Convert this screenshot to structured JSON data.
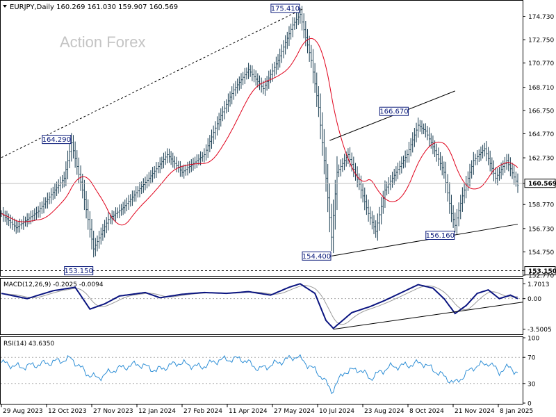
{
  "header": {
    "symbol_line": "EURJPY,Daily  160.269 161.030 159.907 160.569",
    "watermark": "Action Forex"
  },
  "colors": {
    "candles": "#1b3f53",
    "sma": "#e0001a",
    "macd": "#0a1480",
    "signal": "#9a9a9a",
    "rsi": "#2f8fd6",
    "trend": "#000000",
    "price_line": "#bdbdbd"
  },
  "chart_data": [
    {
      "type": "candlestick",
      "title": "EURJPY,Daily",
      "ohlc_last": {
        "open": 160.269,
        "high": 161.03,
        "low": 159.907,
        "close": 160.569
      },
      "ylim": [
        152.77,
        176.0
      ],
      "yticks": [
        "174.730",
        "172.750",
        "170.770",
        "168.710",
        "166.750",
        "164.770",
        "162.730",
        "160.569",
        "158.770",
        "156.730",
        "154.750",
        "153.150",
        "152.770"
      ],
      "current_price_label": "160.569",
      "support_label": "153.150",
      "x_dates": [
        "29 Aug 2023",
        "12 Oct 2023",
        "27 Nov 2023",
        "12 Jan 2024",
        "27 Feb 2024",
        "11 Apr 2024",
        "27 May 2024",
        "10 Jul 2024",
        "23 Aug 2024",
        "8 Oct 2024",
        "21 Nov 2024",
        "8 Jan 2025"
      ],
      "price_anchors": [
        {
          "bar": 0,
          "v": 158.0
        },
        {
          "bar": 8,
          "v": 156.8
        },
        {
          "bar": 20,
          "v": 158.2
        },
        {
          "bar": 34,
          "v": 161.0
        },
        {
          "bar": 38,
          "v": 164.0
        },
        {
          "bar": 44,
          "v": 160.0
        },
        {
          "bar": 50,
          "v": 155.0
        },
        {
          "bar": 58,
          "v": 157.5
        },
        {
          "bar": 66,
          "v": 158.5
        },
        {
          "bar": 80,
          "v": 161.0
        },
        {
          "bar": 90,
          "v": 163.0
        },
        {
          "bar": 98,
          "v": 161.5
        },
        {
          "bar": 110,
          "v": 163.0
        },
        {
          "bar": 118,
          "v": 166.0
        },
        {
          "bar": 126,
          "v": 168.5
        },
        {
          "bar": 134,
          "v": 170.2
        },
        {
          "bar": 142,
          "v": 168.6
        },
        {
          "bar": 150,
          "v": 171.0
        },
        {
          "bar": 158,
          "v": 174.0
        },
        {
          "bar": 162,
          "v": 174.9
        },
        {
          "bar": 168,
          "v": 171.0
        },
        {
          "bar": 172,
          "v": 167.0
        },
        {
          "bar": 176,
          "v": 161.0
        },
        {
          "bar": 179,
          "v": 156.0
        },
        {
          "bar": 182,
          "v": 161.5
        },
        {
          "bar": 188,
          "v": 163.0
        },
        {
          "bar": 194,
          "v": 160.5
        },
        {
          "bar": 199,
          "v": 158.0
        },
        {
          "bar": 203,
          "v": 156.5
        },
        {
          "bar": 208,
          "v": 160.0
        },
        {
          "bar": 214,
          "v": 161.5
        },
        {
          "bar": 220,
          "v": 163.0
        },
        {
          "bar": 226,
          "v": 165.5
        },
        {
          "bar": 230,
          "v": 165.0
        },
        {
          "bar": 236,
          "v": 163.0
        },
        {
          "bar": 240,
          "v": 161.5
        },
        {
          "bar": 244,
          "v": 158.0
        },
        {
          "bar": 246,
          "v": 157.0
        },
        {
          "bar": 250,
          "v": 159.5
        },
        {
          "bar": 256,
          "v": 162.5
        },
        {
          "bar": 262,
          "v": 163.5
        },
        {
          "bar": 268,
          "v": 161.0
        },
        {
          "bar": 274,
          "v": 162.5
        },
        {
          "bar": 280,
          "v": 160.4
        }
      ],
      "annotations": [
        {
          "text": "175.410",
          "bar": 162,
          "value": 175.41,
          "side": "left"
        },
        {
          "text": "164.290",
          "bar": 38,
          "value": 164.29,
          "side": "left"
        },
        {
          "text": "153.150",
          "bar": 50,
          "value": 153.15,
          "side": "left"
        },
        {
          "text": "154.400",
          "bar": 179,
          "value": 154.4,
          "side": "left"
        },
        {
          "text": "166.670",
          "bar": 221,
          "value": 166.67,
          "side": "left"
        },
        {
          "text": "156.160",
          "bar": 246,
          "value": 156.16,
          "side": "left"
        }
      ],
      "trendlines": [
        {
          "style": "dashed",
          "from": {
            "bar": 0,
            "value": 162.75
          },
          "to": {
            "bar": 164,
            "value": 175.41
          }
        },
        {
          "style": "solid",
          "from": {
            "bar": 178,
            "value": 164.2
          },
          "to": {
            "bar": 246,
            "value": 168.4
          }
        },
        {
          "style": "solid",
          "from": {
            "bar": 179,
            "value": 154.4
          },
          "to": {
            "bar": 280,
            "value": 157.1
          }
        }
      ],
      "support_value": 153.15
    },
    {
      "type": "line",
      "title": "MACD(12,26,9) -0.2025 -0.0094",
      "yticks": [
        "1.7013",
        "0.00",
        "-3.5005"
      ],
      "ylim": [
        -4.0,
        2.2
      ],
      "series_anchors": [
        {
          "bar": 0,
          "v": 0.6
        },
        {
          "bar": 14,
          "v": 0.0
        },
        {
          "bar": 28,
          "v": 0.9
        },
        {
          "bar": 40,
          "v": 1.3
        },
        {
          "bar": 48,
          "v": -1.2
        },
        {
          "bar": 56,
          "v": -0.6
        },
        {
          "bar": 64,
          "v": 0.3
        },
        {
          "bar": 78,
          "v": 0.7
        },
        {
          "bar": 86,
          "v": 0.1
        },
        {
          "bar": 98,
          "v": 0.5
        },
        {
          "bar": 110,
          "v": 0.7
        },
        {
          "bar": 122,
          "v": 0.6
        },
        {
          "bar": 134,
          "v": 0.8
        },
        {
          "bar": 146,
          "v": 0.4
        },
        {
          "bar": 156,
          "v": 1.3
        },
        {
          "bar": 162,
          "v": 1.7
        },
        {
          "bar": 170,
          "v": 0.6
        },
        {
          "bar": 176,
          "v": -2.5
        },
        {
          "bar": 180,
          "v": -3.4
        },
        {
          "bar": 190,
          "v": -1.6
        },
        {
          "bar": 200,
          "v": -0.9
        },
        {
          "bar": 208,
          "v": -0.2
        },
        {
          "bar": 216,
          "v": 0.6
        },
        {
          "bar": 226,
          "v": 1.6
        },
        {
          "bar": 234,
          "v": 1.2
        },
        {
          "bar": 240,
          "v": 0.0
        },
        {
          "bar": 246,
          "v": -1.7
        },
        {
          "bar": 252,
          "v": -0.8
        },
        {
          "bar": 258,
          "v": 0.6
        },
        {
          "bar": 264,
          "v": 1.0
        },
        {
          "bar": 270,
          "v": 0.0
        },
        {
          "bar": 276,
          "v": 0.4
        },
        {
          "bar": 280,
          "v": 0.0
        }
      ],
      "signal_lag": 4,
      "trendline": {
        "from": {
          "bar": 180,
          "value": -3.5
        },
        "to": {
          "bar": 280,
          "value": -0.4
        }
      }
    },
    {
      "type": "line",
      "title": "RSI(14) 43.6350",
      "yticks": [
        "100",
        "70",
        "30",
        "0"
      ],
      "ylim": [
        0,
        100
      ],
      "levels": [
        70,
        30
      ],
      "series_anchors": [
        {
          "bar": 0,
          "v": 62
        },
        {
          "bar": 10,
          "v": 55
        },
        {
          "bar": 22,
          "v": 60
        },
        {
          "bar": 38,
          "v": 68
        },
        {
          "bar": 46,
          "v": 46
        },
        {
          "bar": 52,
          "v": 38
        },
        {
          "bar": 62,
          "v": 52
        },
        {
          "bar": 74,
          "v": 60
        },
        {
          "bar": 84,
          "v": 50
        },
        {
          "bar": 96,
          "v": 62
        },
        {
          "bar": 108,
          "v": 55
        },
        {
          "bar": 118,
          "v": 66
        },
        {
          "bar": 130,
          "v": 68
        },
        {
          "bar": 140,
          "v": 52
        },
        {
          "bar": 150,
          "v": 62
        },
        {
          "bar": 160,
          "v": 72
        },
        {
          "bar": 168,
          "v": 55
        },
        {
          "bar": 174,
          "v": 40
        },
        {
          "bar": 179,
          "v": 18
        },
        {
          "bar": 186,
          "v": 48
        },
        {
          "bar": 194,
          "v": 52
        },
        {
          "bar": 200,
          "v": 38
        },
        {
          "bar": 210,
          "v": 55
        },
        {
          "bar": 220,
          "v": 58
        },
        {
          "bar": 228,
          "v": 62
        },
        {
          "bar": 236,
          "v": 48
        },
        {
          "bar": 246,
          "v": 30
        },
        {
          "bar": 256,
          "v": 55
        },
        {
          "bar": 264,
          "v": 62
        },
        {
          "bar": 270,
          "v": 48
        },
        {
          "bar": 276,
          "v": 56
        },
        {
          "bar": 280,
          "v": 44
        }
      ]
    }
  ]
}
